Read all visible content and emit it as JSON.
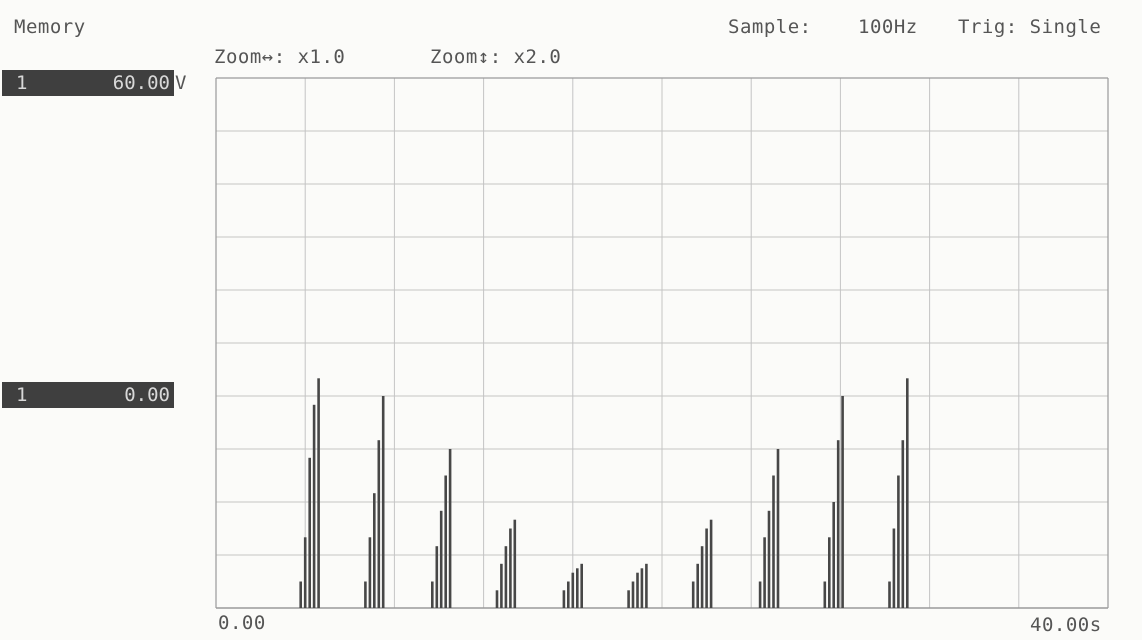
{
  "header": {
    "title": "Memory",
    "sample_label": "Sample:",
    "sample_value": "100Hz",
    "trigger": "Trig: Single",
    "zoom_h": "Zoom↔: x1.0",
    "zoom_v": "Zoom↕: x2.0"
  },
  "channel": {
    "top_number": "1",
    "top_value": "60.00",
    "top_unit": "V",
    "zero_number": "1",
    "zero_value": "0.00"
  },
  "axis": {
    "x_min_label": "0.00",
    "x_max_label": "40.00s"
  },
  "colors": {
    "grid": "#c4c4c4",
    "border": "#9a9a9a",
    "trace": "#474747",
    "background": "#fbfbf9"
  },
  "chart_data": {
    "type": "bar",
    "title": "",
    "xlabel": "",
    "ylabel": "",
    "x_unit": "s",
    "y_unit": "V",
    "xlim": [
      0,
      40
    ],
    "ylim": [
      0,
      60
    ],
    "grid": true,
    "grid_divisions": {
      "x": 10,
      "y": 10
    },
    "series": [
      {
        "values": [
          {
            "x": 3.8,
            "y": 3.0
          },
          {
            "x": 4.0,
            "y": 8.0
          },
          {
            "x": 4.2,
            "y": 17.0
          },
          {
            "x": 4.4,
            "y": 23.0
          },
          {
            "x": 4.6,
            "y": 26.0
          },
          {
            "x": 6.7,
            "y": 3.0
          },
          {
            "x": 6.9,
            "y": 8.0
          },
          {
            "x": 7.1,
            "y": 13.0
          },
          {
            "x": 7.3,
            "y": 19.0
          },
          {
            "x": 7.5,
            "y": 24.0
          },
          {
            "x": 9.7,
            "y": 3.0
          },
          {
            "x": 9.9,
            "y": 7.0
          },
          {
            "x": 10.1,
            "y": 11.0
          },
          {
            "x": 10.3,
            "y": 15.0
          },
          {
            "x": 10.5,
            "y": 18.0
          },
          {
            "x": 12.6,
            "y": 2.0
          },
          {
            "x": 12.8,
            "y": 5.0
          },
          {
            "x": 13.0,
            "y": 7.0
          },
          {
            "x": 13.2,
            "y": 9.0
          },
          {
            "x": 13.4,
            "y": 10.0
          },
          {
            "x": 15.6,
            "y": 2.0
          },
          {
            "x": 15.8,
            "y": 3.0
          },
          {
            "x": 16.0,
            "y": 4.0
          },
          {
            "x": 16.2,
            "y": 4.5
          },
          {
            "x": 16.4,
            "y": 5.0
          },
          {
            "x": 18.5,
            "y": 2.0
          },
          {
            "x": 18.7,
            "y": 3.0
          },
          {
            "x": 18.9,
            "y": 4.0
          },
          {
            "x": 19.1,
            "y": 4.5
          },
          {
            "x": 19.3,
            "y": 5.0
          },
          {
            "x": 21.4,
            "y": 3.0
          },
          {
            "x": 21.6,
            "y": 5.0
          },
          {
            "x": 21.8,
            "y": 7.0
          },
          {
            "x": 22.0,
            "y": 9.0
          },
          {
            "x": 22.2,
            "y": 10.0
          },
          {
            "x": 24.4,
            "y": 3.0
          },
          {
            "x": 24.6,
            "y": 8.0
          },
          {
            "x": 24.8,
            "y": 11.0
          },
          {
            "x": 25.0,
            "y": 15.0
          },
          {
            "x": 25.2,
            "y": 18.0
          },
          {
            "x": 27.3,
            "y": 3.0
          },
          {
            "x": 27.5,
            "y": 8.0
          },
          {
            "x": 27.7,
            "y": 12.0
          },
          {
            "x": 27.9,
            "y": 19.0
          },
          {
            "x": 28.1,
            "y": 24.0
          },
          {
            "x": 30.2,
            "y": 3.0
          },
          {
            "x": 30.4,
            "y": 9.0
          },
          {
            "x": 30.6,
            "y": 15.0
          },
          {
            "x": 30.8,
            "y": 19.0
          },
          {
            "x": 31.0,
            "y": 26.0
          }
        ]
      }
    ]
  }
}
